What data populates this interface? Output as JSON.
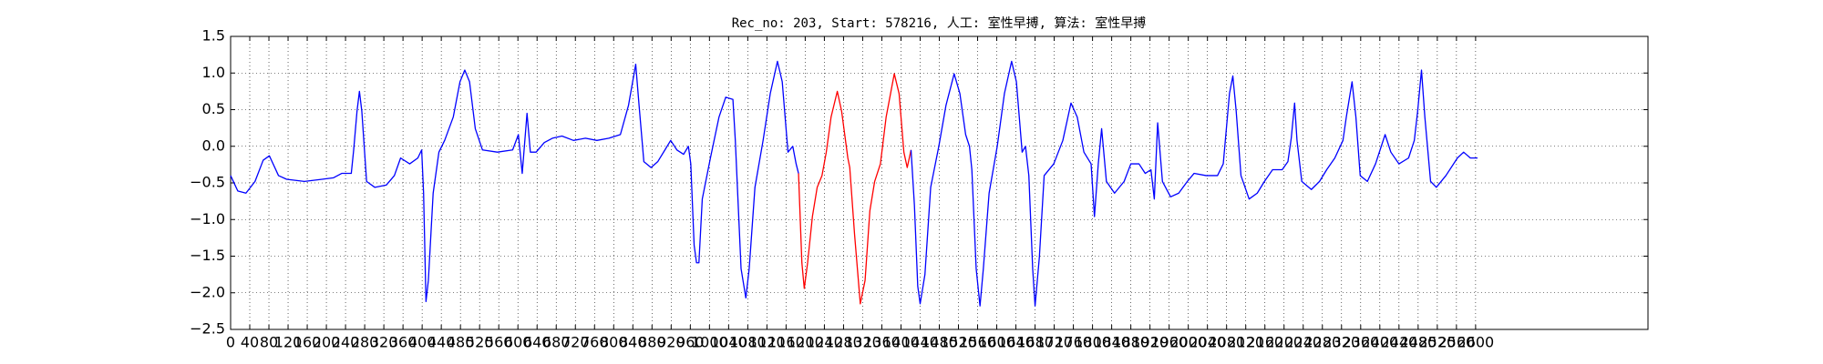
{
  "chart_data": {
    "type": "line",
    "title": "Rec_no: 203, Start: 578216, 人工: 室性早搏, 算法: 室性早搏",
    "grid": true,
    "xlim": [
      0,
      2960
    ],
    "ylim": [
      -2.5,
      1.5
    ],
    "yticks": [
      1.5,
      {
        "value": 1,
        "label": "1.0"
      },
      0.5,
      {
        "value": 0,
        "label": "0.0"
      },
      {
        "value": -0.5,
        "label": "−0.5"
      },
      {
        "value": -1,
        "label": "−1.0"
      },
      {
        "value": -1.5,
        "label": "−1.5"
      },
      {
        "value": -2,
        "label": "−2.0"
      },
      {
        "value": -2.5,
        "label": "−2.5"
      }
    ],
    "xticks": [
      0,
      40,
      80,
      120,
      160,
      200,
      240,
      280,
      320,
      360,
      400,
      440,
      480,
      520,
      560,
      600,
      640,
      680,
      720,
      760,
      800,
      840,
      880,
      920,
      960,
      1000,
      1040,
      1080,
      1120,
      1160,
      1200,
      1240,
      1280,
      1320,
      1360,
      1400,
      1440,
      1480,
      1520,
      1560,
      1600,
      1640,
      1680,
      1720,
      1760,
      1800,
      1840,
      1880,
      1920,
      1960,
      2000,
      2040,
      2080,
      2120,
      2160,
      2200,
      2240,
      2280,
      2320,
      2360,
      2400,
      2440,
      2480,
      2520,
      2560,
      2600
    ],
    "series": [
      {
        "color": "#0000ff",
        "x": [
          0,
          15,
          32,
          51,
          68,
          81,
          100,
          117,
          154,
          191,
          215,
          232,
          252,
          257,
          264,
          269,
          274,
          284,
          301,
          325,
          342,
          355,
          374,
          391,
          399,
          403,
          408,
          413,
          423,
          435,
          447,
          465,
          479,
          489,
          499,
          511,
          526,
          557,
          589,
          601,
          609,
          619,
          626,
          638,
          655,
          672,
          692,
          716,
          741,
          765,
          790,
          814,
          831,
          846,
          853,
          863,
          878,
          892,
          907,
          919,
          932,
          946,
          956,
          961,
          968,
          973,
          978,
          985,
          1002,
          1020,
          1034,
          1049,
          1054,
          1066,
          1076,
          1083,
          1095,
          1112,
          1127,
          1142,
          1152,
          1164,
          1174,
          1181,
          1186
        ],
        "values": [
          -0.4,
          -0.61,
          -0.64,
          -0.48,
          -0.19,
          -0.13,
          -0.4,
          -0.45,
          -0.48,
          -0.45,
          -0.43,
          -0.37,
          -0.37,
          -0.05,
          0.48,
          0.75,
          0.48,
          -0.48,
          -0.56,
          -0.53,
          -0.4,
          -0.16,
          -0.24,
          -0.16,
          -0.05,
          -0.64,
          -2.12,
          -1.83,
          -0.64,
          -0.08,
          0.08,
          0.4,
          0.88,
          1.04,
          0.88,
          0.24,
          -0.05,
          -0.08,
          -0.05,
          0.16,
          -0.37,
          0.45,
          -0.08,
          -0.08,
          0.05,
          0.11,
          0.14,
          0.08,
          0.11,
          0.08,
          0.11,
          0.16,
          0.56,
          1.12,
          0.56,
          -0.21,
          -0.29,
          -0.21,
          -0.05,
          0.08,
          -0.05,
          -0.11,
          0,
          -0.24,
          -1.35,
          -1.59,
          -1.59,
          -0.72,
          -0.16,
          0.4,
          0.67,
          0.64,
          0.08,
          -1.67,
          -2.07,
          -1.67,
          -0.56,
          0.08,
          0.72,
          1.16,
          0.88,
          -0.08,
          0,
          -0.24,
          -0.37
        ]
      },
      {
        "color": "#ff0000",
        "x": [
          1186,
          1193,
          1198,
          1205,
          1215,
          1225,
          1235,
          1244,
          1254,
          1267,
          1276,
          1289,
          1293,
          1303,
          1315,
          1325,
          1335,
          1345,
          1357,
          1369,
          1386,
          1396,
          1406,
          1413,
          1421
        ],
        "values": [
          -0.37,
          -1.59,
          -1.94,
          -1.59,
          -0.96,
          -0.56,
          -0.4,
          -0.08,
          0.4,
          0.75,
          0.48,
          -0.16,
          -0.29,
          -1.2,
          -2.15,
          -1.83,
          -0.88,
          -0.48,
          -0.24,
          0.4,
          0.99,
          0.72,
          -0.08,
          -0.29,
          -0.05
        ]
      },
      {
        "color": "#0000ff",
        "x": [
          1421,
          1428,
          1435,
          1440,
          1450,
          1462,
          1479,
          1494,
          1511,
          1523,
          1535,
          1543,
          1548,
          1557,
          1565,
          1572,
          1584,
          1601,
          1616,
          1631,
          1641,
          1653,
          1660,
          1667,
          1675,
          1680,
          1689,
          1699,
          1719,
          1738,
          1755,
          1768,
          1782,
          1797,
          1804,
          1812,
          1819,
          1829,
          1846,
          1866,
          1880,
          1897,
          1910,
          1922,
          1929,
          1936,
          1946,
          1963,
          1980,
          1998,
          2012,
          2037,
          2061,
          2073,
          2086,
          2093,
          2100,
          2110,
          2127,
          2144,
          2159,
          2176,
          2196,
          2208,
          2215,
          2222,
          2227,
          2237,
          2257,
          2274,
          2289,
          2306,
          2323,
          2330,
          2342,
          2350,
          2359,
          2374,
          2391,
          2411,
          2423,
          2440,
          2460,
          2472,
          2479,
          2487,
          2494,
          2506,
          2518,
          2538,
          2562,
          2575,
          2589,
          2604
        ],
        "values": [
          -0.05,
          -0.8,
          -1.91,
          -2.15,
          -1.75,
          -0.56,
          0,
          0.56,
          0.99,
          0.72,
          0.16,
          0,
          -0.32,
          -1.67,
          -2.18,
          -1.67,
          -0.64,
          0,
          0.72,
          1.16,
          0.88,
          -0.08,
          0,
          -0.4,
          -1.67,
          -2.18,
          -1.51,
          -0.4,
          -0.24,
          0.08,
          0.59,
          0.4,
          -0.08,
          -0.24,
          -0.96,
          -0.24,
          0.24,
          -0.48,
          -0.64,
          -0.48,
          -0.24,
          -0.24,
          -0.37,
          -0.32,
          -0.72,
          0.32,
          -0.48,
          -0.69,
          -0.64,
          -0.48,
          -0.37,
          -0.4,
          -0.4,
          -0.24,
          0.72,
          0.96,
          0.48,
          -0.4,
          -0.72,
          -0.64,
          -0.48,
          -0.32,
          -0.32,
          -0.21,
          0.11,
          0.59,
          0.08,
          -0.48,
          -0.59,
          -0.48,
          -0.32,
          -0.16,
          0.08,
          0.4,
          0.88,
          0.4,
          -0.4,
          -0.48,
          -0.24,
          0.16,
          -0.08,
          -0.24,
          -0.16,
          0.08,
          0.48,
          1.04,
          0.4,
          -0.48,
          -0.56,
          -0.4,
          -0.16,
          -0.08,
          -0.16,
          -0.16
        ]
      }
    ]
  }
}
